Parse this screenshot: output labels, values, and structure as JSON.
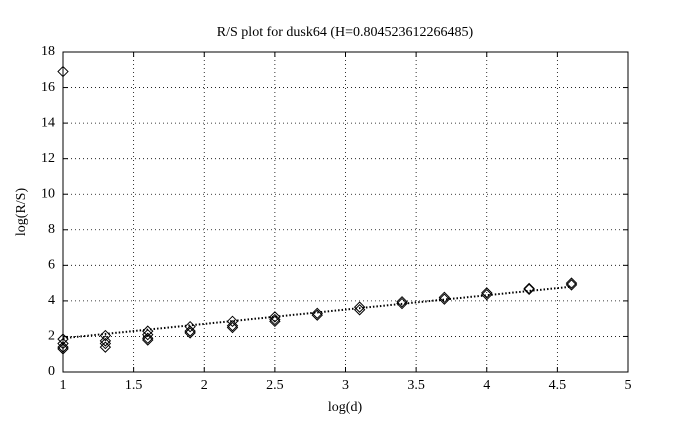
{
  "chart_data": {
    "type": "scatter",
    "title": "R/S plot for dusk64 (H=0.804523612266485)",
    "x_label": "log(d)",
    "y_label": "log(R/S)",
    "xlim": [
      1,
      5
    ],
    "ylim": [
      0,
      18
    ],
    "xticks": [
      1,
      1.5,
      2,
      2.5,
      3,
      3.5,
      4,
      4.5,
      5
    ],
    "yticks": [
      0,
      2,
      4,
      6,
      8,
      10,
      12,
      14,
      16,
      18
    ],
    "grid": true,
    "color": "#000000",
    "series": [
      {
        "marker": "diamond",
        "x": [
          1,
          1,
          1,
          1,
          1,
          1.3,
          1.3,
          1.3,
          1.3,
          1.6,
          1.6,
          1.6,
          1.6,
          1.9,
          1.9,
          1.9,
          2.2,
          2.2,
          2.2,
          2.5,
          2.5,
          2.5,
          2.8,
          2.8,
          3.1,
          3.1,
          3.4,
          3.4,
          3.7,
          3.7,
          4.0,
          4.0,
          4.3,
          4.3,
          4.6,
          4.6
        ],
        "values": [
          16.9,
          1.85,
          1.6,
          1.4,
          1.3,
          2.05,
          1.75,
          1.6,
          1.4,
          2.3,
          2.1,
          1.9,
          1.8,
          2.55,
          2.3,
          2.2,
          2.85,
          2.6,
          2.5,
          3.1,
          2.95,
          2.85,
          3.3,
          3.2,
          3.65,
          3.5,
          3.95,
          3.85,
          4.2,
          4.1,
          4.45,
          4.35,
          4.7,
          4.65,
          5.0,
          4.9
        ]
      },
      {
        "line": "dotted",
        "x": [
          1,
          4.6
        ],
        "values": [
          1.9,
          4.8
        ]
      }
    ]
  }
}
